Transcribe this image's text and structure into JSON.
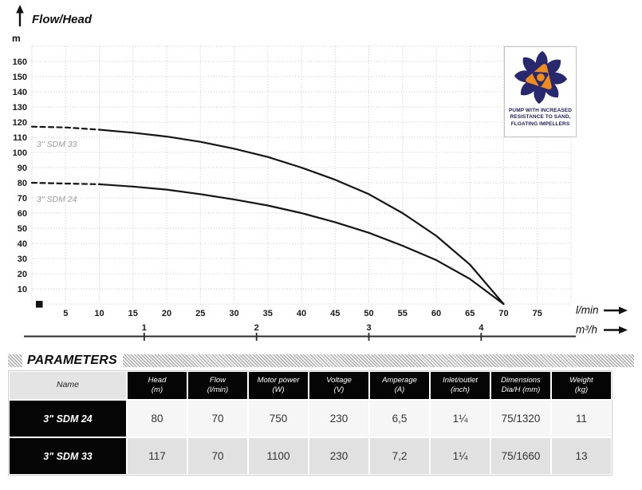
{
  "chart_data": {
    "type": "line",
    "title": "Flow/Head",
    "y_axis_unit": "m",
    "x_axis_unit_primary": "l/min",
    "x_axis_unit_secondary": "m³/h",
    "x_range_lmin": [
      0,
      80
    ],
    "y_range_m": [
      0,
      170
    ],
    "x_ticks_lmin": [
      5,
      10,
      15,
      20,
      25,
      30,
      35,
      40,
      45,
      50,
      55,
      60,
      65,
      70,
      75
    ],
    "y_ticks_m": [
      160,
      150,
      140,
      130,
      120,
      110,
      100,
      90,
      80,
      70,
      60,
      50,
      40,
      30,
      20,
      10
    ],
    "x2_ticks_m3h": [
      1,
      2,
      3,
      4
    ],
    "grid": true,
    "legend_position": "on-curve",
    "series": [
      {
        "name": "3\" SDM 33",
        "max_head_m": 117,
        "end_flow_lmin": 70,
        "dashed_until_lmin": 10,
        "points_lmin_m": [
          [
            0,
            117
          ],
          [
            5,
            116.5
          ],
          [
            10,
            115
          ],
          [
            15,
            113
          ],
          [
            20,
            110.5
          ],
          [
            25,
            107
          ],
          [
            30,
            102.5
          ],
          [
            35,
            97
          ],
          [
            40,
            90
          ],
          [
            45,
            82
          ],
          [
            50,
            72.5
          ],
          [
            55,
            60
          ],
          [
            60,
            45
          ],
          [
            65,
            26
          ],
          [
            70,
            0
          ]
        ]
      },
      {
        "name": "3\" SDM 24",
        "max_head_m": 80,
        "end_flow_lmin": 70,
        "dashed_until_lmin": 10,
        "points_lmin_m": [
          [
            0,
            80
          ],
          [
            5,
            79.5
          ],
          [
            10,
            79
          ],
          [
            15,
            77.5
          ],
          [
            20,
            75.5
          ],
          [
            25,
            72.5
          ],
          [
            30,
            69
          ],
          [
            35,
            65
          ],
          [
            40,
            60
          ],
          [
            45,
            54
          ],
          [
            50,
            47
          ],
          [
            55,
            38.5
          ],
          [
            60,
            29
          ],
          [
            65,
            16.5
          ],
          [
            70,
            0
          ]
        ]
      }
    ]
  },
  "badge": {
    "caption_lines": [
      "PUMP WITH INCREASED",
      "RESISTANCE TO SAND,",
      "FLOATING IMPELLERS"
    ],
    "navy": "#28286e",
    "orange": "#ee8c1e"
  },
  "parameters": {
    "title": "PARAMETERS",
    "name_header": "Name",
    "columns": [
      {
        "label": "Head",
        "unit": "(m)"
      },
      {
        "label": "Flow",
        "unit": "(l/min)"
      },
      {
        "label": "Motor power",
        "unit": "(W)"
      },
      {
        "label": "Voltage",
        "unit": "(V)"
      },
      {
        "label": "Amperage",
        "unit": "(A)"
      },
      {
        "label": "Inlet/outlet",
        "unit": "(inch)"
      },
      {
        "label": "Dimensions",
        "unit": "Dia/H (mm)"
      },
      {
        "label": "Weight",
        "unit": "(kg)"
      }
    ],
    "rows": [
      {
        "name": "3\" SDM 24",
        "values": [
          "80",
          "70",
          "750",
          "230",
          "6,5",
          "1¼",
          "75/1320",
          "11"
        ]
      },
      {
        "name": "3\" SDM 33",
        "values": [
          "117",
          "70",
          "1100",
          "230",
          "7,2",
          "1¼",
          "75/1660",
          "13"
        ]
      }
    ]
  }
}
